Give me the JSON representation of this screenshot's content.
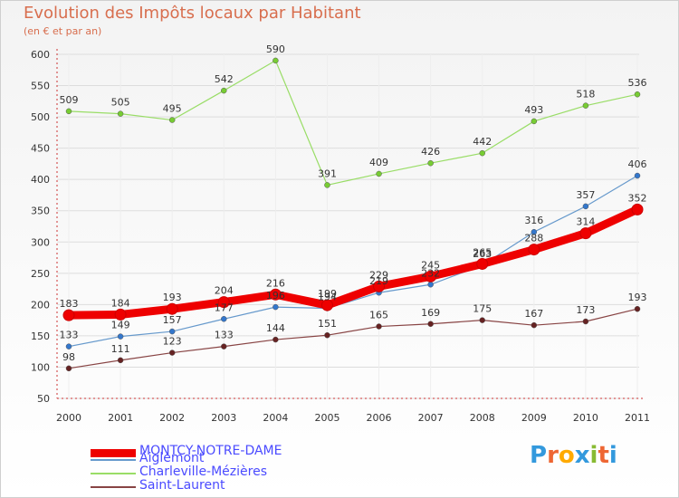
{
  "header": {
    "title": "Evolution des Impôts locaux par Habitant",
    "subtitle": "(en € et par an)"
  },
  "logo": {
    "text": "Proxiti"
  },
  "colors": {
    "title": "#d86e4e",
    "legend_text": "#4a4aff",
    "axis": "#cc3333"
  },
  "chart_data": {
    "type": "line",
    "title": "Evolution des Impôts locaux par Habitant",
    "subtitle": "(en € et par an)",
    "xlabel": "",
    "ylabel": "",
    "ylim": [
      50,
      600
    ],
    "yticks": [
      50,
      100,
      150,
      200,
      250,
      300,
      350,
      400,
      450,
      500,
      550,
      600
    ],
    "categories": [
      "2000",
      "2001",
      "2002",
      "2003",
      "2004",
      "2005",
      "2006",
      "2007",
      "2008",
      "2009",
      "2010",
      "2011"
    ],
    "legend_position": "bottom-left",
    "series": [
      {
        "name": "MONTCY-NOTRE-DAME",
        "color": "#ee0000",
        "marker": "#ee0000",
        "width": 9,
        "values": [
          183,
          184,
          193,
          204,
          216,
          199,
          229,
          245,
          265,
          288,
          314,
          352
        ]
      },
      {
        "name": "Aiglemont",
        "color": "#6699cc",
        "marker": "#3377cc",
        "width": 1.2,
        "values": [
          133,
          149,
          157,
          177,
          196,
          194,
          219,
          232,
          263,
          316,
          357,
          406
        ]
      },
      {
        "name": "Charleville-Mézières",
        "color": "#99dd66",
        "marker": "#77cc33",
        "width": 1.2,
        "values": [
          509,
          505,
          495,
          542,
          590,
          391,
          409,
          426,
          442,
          493,
          518,
          536
        ]
      },
      {
        "name": "Saint-Laurent",
        "color": "#884444",
        "marker": "#662222",
        "width": 1.2,
        "values": [
          98,
          111,
          123,
          133,
          144,
          151,
          165,
          169,
          175,
          167,
          173,
          193
        ]
      }
    ]
  }
}
